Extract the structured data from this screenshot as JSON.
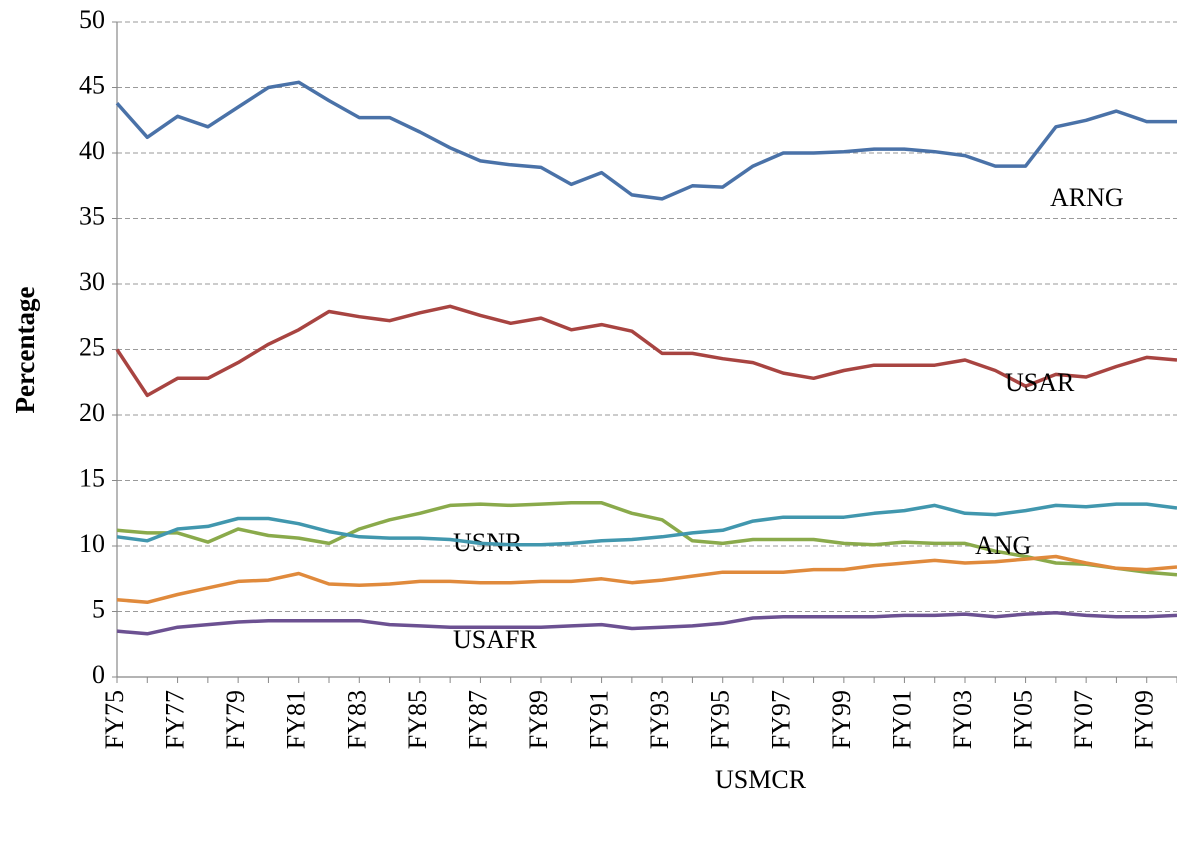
{
  "chart_data": {
    "type": "line",
    "y_label": "Percentage",
    "categories": [
      "FY75",
      null,
      "FY77",
      null,
      "FY79",
      null,
      "FY81",
      null,
      "FY83",
      null,
      "FY85",
      null,
      "FY87",
      null,
      "FY89",
      null,
      "FY91",
      null,
      "FY93",
      null,
      "FY95",
      null,
      "FY97",
      null,
      "FY99",
      null,
      "FY01",
      null,
      "FY03",
      null,
      "FY05",
      null,
      "FY07",
      null,
      "FY09",
      null
    ],
    "ylim": [
      0,
      50
    ],
    "yticks": [
      0,
      5,
      10,
      15,
      20,
      25,
      30,
      35,
      40,
      45,
      50
    ],
    "grid": true,
    "series": [
      {
        "name": "ARNG",
        "color": "#4a72a8",
        "values": [
          43.8,
          41.2,
          42.8,
          42.0,
          43.5,
          45.0,
          45.4,
          44.0,
          42.7,
          42.7,
          41.6,
          40.4,
          39.4,
          39.1,
          38.9,
          37.6,
          38.5,
          36.8,
          36.5,
          37.5,
          37.4,
          39.0,
          40.0,
          40.0,
          40.1,
          40.3,
          40.3,
          40.1,
          39.8,
          39.0,
          39.0,
          42.0,
          42.5,
          43.2,
          42.4,
          42.4
        ]
      },
      {
        "name": "USAR",
        "color": "#a84441",
        "values": [
          25.0,
          21.5,
          22.8,
          22.8,
          24.0,
          25.4,
          26.5,
          27.9,
          27.5,
          27.2,
          27.8,
          28.3,
          27.6,
          27.0,
          27.4,
          26.5,
          26.9,
          26.4,
          24.7,
          24.7,
          24.3,
          24.0,
          23.2,
          22.8,
          23.4,
          23.8,
          23.8,
          23.8,
          24.2,
          23.4,
          22.2,
          23.1,
          22.9,
          23.7,
          24.4,
          24.2
        ]
      },
      {
        "name": "USNR",
        "color": "#8aaa4b",
        "values": [
          11.2,
          11.0,
          11.0,
          10.3,
          11.3,
          10.8,
          10.6,
          10.2,
          11.3,
          12.0,
          12.5,
          13.1,
          13.2,
          13.1,
          13.2,
          13.3,
          13.3,
          12.5,
          12.0,
          10.4,
          10.2,
          10.5,
          10.5,
          10.5,
          10.2,
          10.1,
          10.3,
          10.2,
          10.2,
          9.6,
          9.2,
          8.7,
          8.6,
          8.3,
          8.0,
          7.8
        ]
      },
      {
        "name": "ANG",
        "color": "#4197ae",
        "values": [
          10.7,
          10.4,
          11.3,
          11.5,
          12.1,
          12.1,
          11.7,
          11.1,
          10.7,
          10.6,
          10.6,
          10.5,
          10.2,
          10.1,
          10.1,
          10.2,
          10.4,
          10.5,
          10.7,
          11.0,
          11.2,
          11.9,
          12.2,
          12.2,
          12.2,
          12.5,
          12.7,
          13.1,
          12.5,
          12.4,
          12.7,
          13.1,
          13.0,
          13.2,
          13.2,
          12.9
        ]
      },
      {
        "name": "USAFR",
        "color": "#e08a3c",
        "values": [
          5.9,
          5.7,
          6.3,
          6.8,
          7.3,
          7.4,
          7.9,
          7.1,
          7.0,
          7.1,
          7.3,
          7.3,
          7.2,
          7.2,
          7.3,
          7.3,
          7.5,
          7.2,
          7.4,
          7.7,
          8.0,
          8.0,
          8.0,
          8.2,
          8.2,
          8.5,
          8.7,
          8.9,
          8.7,
          8.8,
          9.0,
          9.2,
          8.7,
          8.3,
          8.2,
          8.4
        ]
      },
      {
        "name": "USMCR",
        "color": "#6c5192",
        "values": [
          3.5,
          3.3,
          3.8,
          4.0,
          4.2,
          4.3,
          4.3,
          4.3,
          4.3,
          4.0,
          3.9,
          3.8,
          3.8,
          3.8,
          3.8,
          3.9,
          4.0,
          3.7,
          3.8,
          3.9,
          4.1,
          4.5,
          4.6,
          4.6,
          4.6,
          4.6,
          4.7,
          4.7,
          4.8,
          4.6,
          4.8,
          4.9,
          4.7,
          4.6,
          4.6,
          4.7
        ]
      }
    ]
  }
}
